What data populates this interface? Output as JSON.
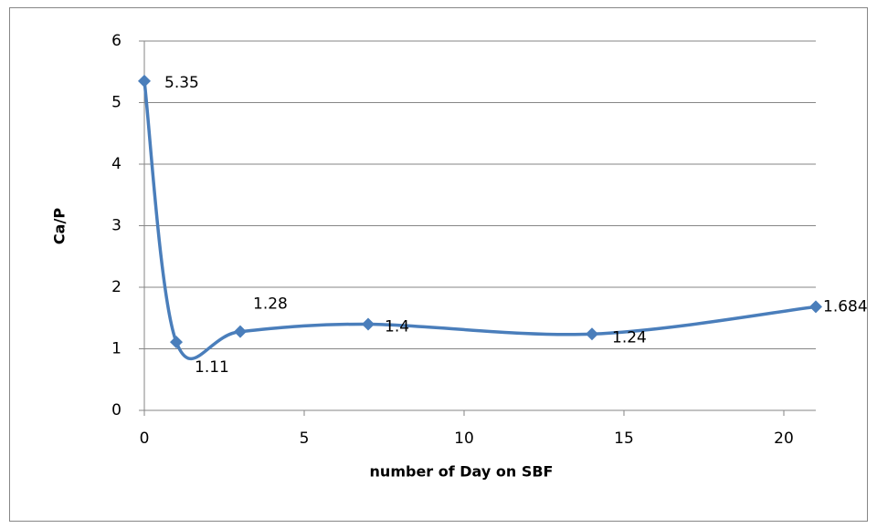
{
  "chart_data": {
    "type": "line",
    "x_label": "number of Day on SBF",
    "y_label": "Ca/P",
    "x": [
      0,
      1,
      3,
      7,
      14,
      21
    ],
    "series": [
      {
        "color": "#4a7ebb",
        "values": [
          5.35,
          1.11,
          1.28,
          1.4,
          1.24,
          1.684
        ]
      }
    ],
    "xlim": [
      0,
      21
    ],
    "xticks": [
      0,
      5,
      10,
      15,
      20
    ],
    "ylim": [
      0,
      6
    ],
    "yticks": [
      0,
      1,
      2,
      3,
      4,
      5,
      6
    ],
    "grid": true,
    "smooth": true
  }
}
